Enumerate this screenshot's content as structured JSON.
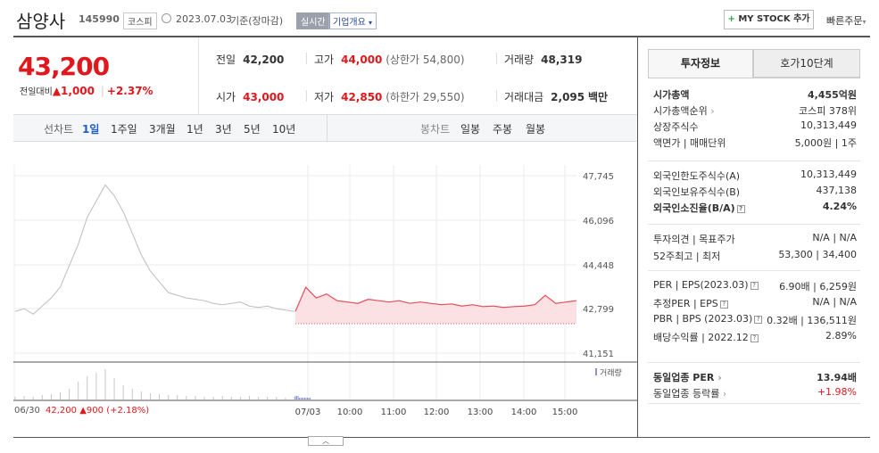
{
  "header": {
    "name": "삼양사",
    "code": "145990",
    "market": "코스피",
    "date": "2023.07.03",
    "basis": "기준(장마감)",
    "live": "실시간",
    "company_info": "기업개요",
    "my_stock": "MY STOCK 추가",
    "quick_order": "빠른주문"
  },
  "quote": {
    "price": "43,200",
    "change_label": "전일대비",
    "change": "1,000",
    "change_pct": "+2.37%",
    "prev_label": "전일",
    "prev": "42,200",
    "high_label": "고가",
    "high": "44,000",
    "upper_limit": "(상한가 54,800)",
    "volume_label": "거래량",
    "volume": "48,319",
    "open_label": "시가",
    "open": "43,000",
    "low_label": "저가",
    "low": "42,850",
    "lower_limit": "(하한가 29,550)",
    "amount_label": "거래대금",
    "amount": "2,095",
    "amount_unit": "백만"
  },
  "chart_tabs": {
    "line_label": "선차트",
    "line_items": [
      "1일",
      "1주일",
      "3개월",
      "1년",
      "3년",
      "5년",
      "10년"
    ],
    "candle_label": "봉차트",
    "candle_items": [
      "일봉",
      "주봉",
      "월봉"
    ],
    "selected": "1일"
  },
  "chart_data": {
    "type": "line",
    "y_ticks": [
      "47,745",
      "46,096",
      "44,448",
      "42,799",
      "41,151"
    ],
    "ylim": [
      41151,
      47745
    ],
    "x_ticks": [
      "07/03",
      "10:00",
      "11:00",
      "12:00",
      "13:00",
      "14:00",
      "15:00"
    ],
    "volume_label": "거래량",
    "prev_day": {
      "date": "06/30",
      "close": "42,200",
      "change": "900",
      "change_pct": "(+2.18%)",
      "values": [
        42700,
        42800,
        42600,
        42900,
        43200,
        43600,
        44400,
        45200,
        46200,
        46800,
        47400,
        47000,
        46400,
        45600,
        44800,
        44200,
        43800,
        43400,
        43300,
        43200,
        43150,
        43100,
        43000,
        42950,
        43000,
        43050,
        42900,
        42850,
        42900,
        42800,
        42750,
        42700
      ]
    },
    "today": {
      "baseline": 42200,
      "values": [
        42700,
        43600,
        43200,
        43350,
        43100,
        43050,
        43000,
        43150,
        43100,
        43050,
        43100,
        43000,
        43050,
        43000,
        42950,
        42980,
        42900,
        42950,
        42880,
        42900,
        42850,
        42880,
        42900,
        42950,
        43300,
        43000,
        43050,
        43100
      ]
    }
  },
  "side": {
    "tab_info": "투자정보",
    "tab_order": "호가10단계",
    "rows1": [
      {
        "l": "시가총액",
        "r": "4,455억원",
        "bold": true
      },
      {
        "l": "시가총액순위",
        "r": "코스피 378위",
        "arrow": true
      },
      {
        "l": "상장주식수",
        "r": "10,313,449"
      },
      {
        "l": "액면가 | 매매단위",
        "r": "5,000원 | 1주"
      }
    ],
    "rows2": [
      {
        "l": "외국인한도주식수(A)",
        "r": "10,313,449"
      },
      {
        "l": "외국인보유주식수(B)",
        "r": "437,138"
      },
      {
        "l": "외국인소진율(B/A)",
        "r": "4.24%",
        "bold": true,
        "q": true
      }
    ],
    "rows3": [
      {
        "l": "투자의견 | 목표주가",
        "r": "N/A | N/A"
      },
      {
        "l": "52주최고 | 최저",
        "r": "53,300 | 34,400"
      }
    ],
    "rows4": [
      {
        "l": "PER | EPS(2023.03)",
        "r": "6.90배 | 6,259원",
        "q": true
      },
      {
        "l": "추정PER | EPS",
        "r": "N/A | N/A",
        "q": true
      },
      {
        "l": "PBR | BPS (2023.03)",
        "r": "0.32배 | 136,511원",
        "q": true
      },
      {
        "l": "배당수익률 | 2022.12",
        "r": "2.89%",
        "q": true
      }
    ],
    "rows5": [
      {
        "l": "동일업종 PER",
        "r": "13.94배",
        "bold": true,
        "arrow": true
      },
      {
        "l": "동일업종 등락률",
        "r": "+1.98%",
        "arrow": true,
        "red": true
      }
    ]
  },
  "colors": {
    "up": "#e0181e",
    "down": "#1d5ecd",
    "line": "#e84c57",
    "fill": "#fbe1e3",
    "prev": "#bdbdbd"
  }
}
